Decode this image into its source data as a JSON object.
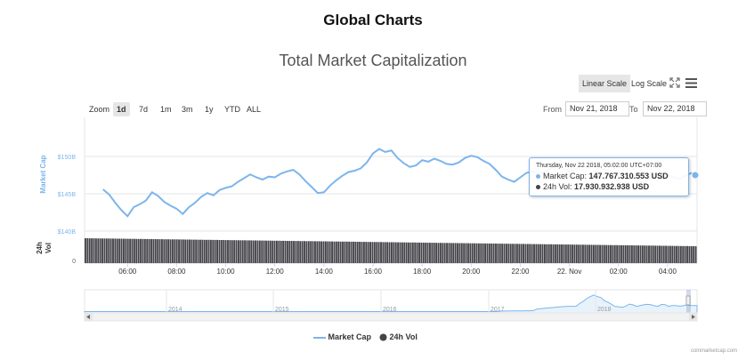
{
  "page_title": "Global Charts",
  "chart_title": "Total Market Capitalization",
  "scale": {
    "linear_label": "Linear Scale",
    "log_label": "Log Scale",
    "active": "linear"
  },
  "toolbar_icons": [
    "fullscreen-icon",
    "menu-icon"
  ],
  "zoom": {
    "label": "Zoom",
    "buttons": [
      "1d",
      "7d",
      "1m",
      "3m",
      "1y",
      "YTD",
      "ALL"
    ],
    "active": "1d"
  },
  "range": {
    "from_label": "From",
    "from_value": "Nov 21, 2018",
    "to_label": "To",
    "to_value": "Nov 22, 2018"
  },
  "axes": {
    "market_cap_label": "Market Cap",
    "vol_label_line1": "24h",
    "vol_label_line2": "Vol",
    "vol_zero": "0"
  },
  "tooltip": {
    "date": "Thursday, Nov 22 2018, 05:02:00 UTC+07:00",
    "market_cap_label": "Market Cap:",
    "market_cap_value": "147.767.310.553 USD",
    "vol_label": "24h Vol:",
    "vol_value": "17.930.932.938 USD"
  },
  "navigator": {
    "year_labels": [
      "2014",
      "2015",
      "2016",
      "2017",
      "2018"
    ]
  },
  "legend": {
    "market_cap": "Market Cap",
    "vol": "24h Vol"
  },
  "credit": "coinmarketcap.com",
  "colors": {
    "line": "#7cb5ec",
    "volume": "#434348",
    "axis_text": "#7cb5ec",
    "active_btn": "#e6e6e6"
  },
  "chart_data": {
    "type": "line",
    "x_ticks": [
      "06:00",
      "08:00",
      "10:00",
      "12:00",
      "14:00",
      "16:00",
      "18:00",
      "20:00",
      "22:00",
      "22. Nov",
      "02:00",
      "04:00"
    ],
    "y_ticks": [
      "$140B",
      "$145B",
      "$150B"
    ],
    "ylim": [
      140,
      152
    ],
    "x_hours": [
      5.0,
      5.25,
      5.5,
      5.75,
      6.0,
      6.25,
      6.5,
      6.75,
      7.0,
      7.25,
      7.5,
      7.75,
      8.0,
      8.25,
      8.5,
      8.75,
      9.0,
      9.25,
      9.5,
      9.75,
      10.0,
      10.25,
      10.5,
      10.75,
      11.0,
      11.25,
      11.5,
      11.75,
      12.0,
      12.25,
      12.5,
      12.75,
      13.0,
      13.25,
      13.5,
      13.75,
      14.0,
      14.25,
      14.5,
      14.75,
      15.0,
      15.25,
      15.5,
      15.75,
      16.0,
      16.25,
      16.5,
      16.75,
      17.0,
      17.25,
      17.5,
      17.75,
      18.0,
      18.25,
      18.5,
      18.75,
      19.0,
      19.25,
      19.5,
      19.75,
      20.0,
      20.25,
      20.5,
      20.75,
      21.0,
      21.25,
      21.5,
      21.75,
      22.0,
      22.25,
      22.5,
      22.75,
      23.0,
      23.25,
      23.5,
      23.75,
      24.0,
      24.25,
      24.5,
      24.75,
      25.0,
      25.25,
      25.5,
      25.75,
      26.0,
      26.25,
      26.5,
      26.75,
      27.0,
      27.25,
      27.5,
      27.75,
      28.0,
      28.25,
      28.5,
      28.75,
      29.0
    ],
    "series": [
      {
        "name": "Market Cap",
        "values": [
          145.6,
          144.9,
          143.8,
          142.8,
          142.0,
          143.2,
          143.6,
          144.1,
          145.2,
          144.7,
          143.9,
          143.4,
          143.0,
          142.3,
          143.2,
          143.8,
          144.6,
          145.1,
          144.8,
          145.5,
          145.8,
          146.0,
          146.6,
          147.1,
          147.6,
          147.2,
          146.9,
          147.3,
          147.2,
          147.7,
          148.0,
          148.2,
          147.6,
          146.7,
          145.9,
          145.1,
          145.2,
          146.1,
          146.8,
          147.4,
          147.9,
          148.1,
          148.4,
          149.2,
          150.4,
          151.0,
          150.6,
          150.8,
          149.8,
          149.1,
          148.6,
          148.8,
          149.5,
          149.3,
          149.7,
          149.4,
          149.0,
          148.9,
          149.2,
          149.8,
          150.1,
          149.9,
          149.4,
          149.0,
          148.2,
          147.3,
          146.9,
          146.6,
          147.2,
          147.8,
          148.0,
          147.7,
          148.0,
          148.4,
          148.9,
          148.4,
          148.0,
          148.3,
          148.8,
          148.6,
          148.9,
          148.5,
          148.2,
          148.0,
          147.8,
          147.6,
          147.2,
          146.8,
          146.5,
          146.9,
          147.3,
          147.1,
          147.5,
          147.2,
          147.0,
          147.5,
          147.8
        ]
      },
      {
        "name": "24h Vol",
        "bars": 288
      }
    ],
    "navigator": {
      "type": "area",
      "years": [
        "2014",
        "2015",
        "2016",
        "2017",
        "2018"
      ]
    }
  }
}
